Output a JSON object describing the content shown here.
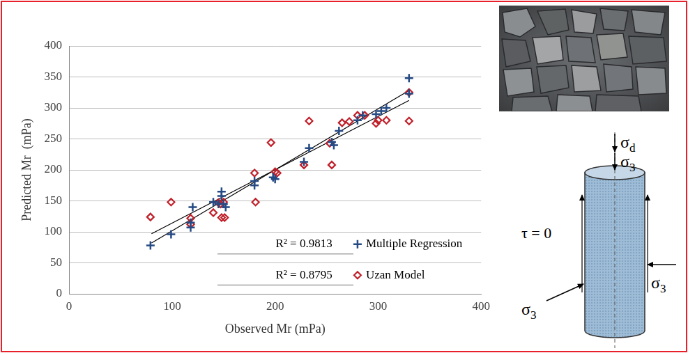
{
  "chart_data": {
    "type": "scatter",
    "x_label": "Observed Mr (mPa)",
    "y_label": "Predicted Mr  (mPa)",
    "xlim": [
      0,
      400
    ],
    "xticks": [
      0,
      100,
      200,
      300,
      400
    ],
    "ylim": [
      0,
      400
    ],
    "yticks": [
      0,
      50,
      100,
      150,
      200,
      250,
      300,
      350,
      400
    ],
    "grid": "y",
    "legend": "bottom right",
    "annotations": [
      "R² = 0.9813",
      "R² = 0.8795"
    ],
    "series": [
      {
        "name": "Multiple Regression",
        "color": "#254a84",
        "marker": "plus",
        "x": [
          79,
          99,
          118,
          118,
          120,
          140,
          145,
          148,
          148,
          150,
          152,
          180,
          180,
          198,
          200,
          228,
          233,
          255,
          257,
          262,
          280,
          285,
          298,
          303,
          308,
          330,
          330
        ],
        "values": [
          78,
          96,
          107,
          115,
          140,
          148,
          145,
          165,
          158,
          145,
          140,
          175,
          182,
          188,
          185,
          213,
          235,
          245,
          240,
          263,
          280,
          288,
          290,
          295,
          300,
          348,
          323
        ]
      },
      {
        "name": "Uzan Model",
        "color": "#c0202a",
        "marker": "diamond",
        "x": [
          79,
          99,
          118,
          118,
          140,
          145,
          147,
          150,
          148,
          151,
          181,
          180,
          196,
          200,
          202,
          228,
          233,
          253,
          255,
          265,
          272,
          280,
          287,
          298,
          300,
          308,
          330,
          330
        ],
        "values": [
          124,
          148,
          112,
          122,
          131,
          147,
          145,
          148,
          123,
          123,
          148,
          195,
          244,
          197,
          195,
          208,
          279,
          243,
          208,
          276,
          278,
          288,
          288,
          275,
          280,
          280,
          325,
          279
        ]
      },
      {
        "type": "line",
        "color": "#000000",
        "marker": "none",
        "x": [
          80,
          330
        ],
        "values": [
          82,
          328
        ]
      },
      {
        "type": "line",
        "color": "#000000",
        "marker": "none",
        "x": [
          80,
          330
        ],
        "values": [
          97,
          312
        ]
      }
    ]
  },
  "diagram": {
    "sigma_d": "σd",
    "sigma_3_top": "σ3",
    "tau": "τ = 0",
    "sigma_3_right": "σ3",
    "sigma_3_left": "σ3"
  }
}
